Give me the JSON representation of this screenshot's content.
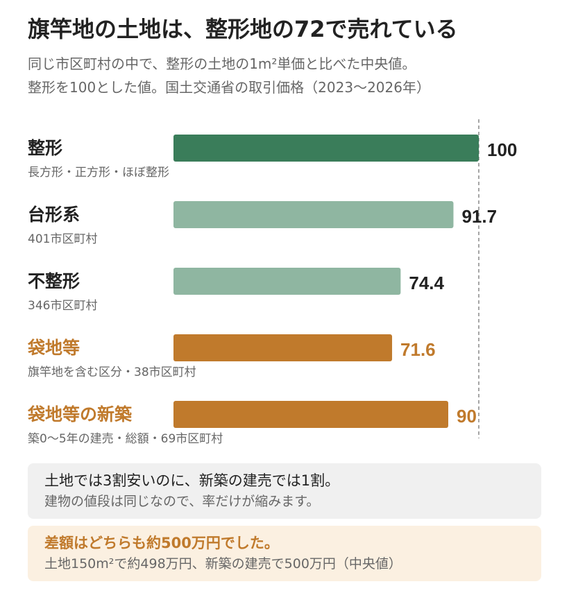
{
  "title": "旗竿地の土地は、整形地の72で売れている",
  "subtitle": [
    "同じ市区町村の中で、整形の土地の1m²単価と比べた中央値。",
    "整形を100とした値。国土交通省の取引価格（2023〜2026年）"
  ],
  "chart_data": {
    "type": "bar",
    "orientation": "horizontal",
    "title": "",
    "xlabel": "",
    "ylabel": "",
    "xlim": [
      0,
      100
    ],
    "reference_line": 100,
    "categories": [
      {
        "label": "整形",
        "sublabel": "長方形・正方形・ほぼ整形",
        "value": 100,
        "value_label": "100",
        "color": "#3a7d5a",
        "label_color": "#222222"
      },
      {
        "label": "台形系",
        "sublabel": "401市区町村",
        "value": 91.7,
        "value_label": "91.7",
        "color": "#8fb6a1",
        "label_color": "#222222"
      },
      {
        "label": "不整形",
        "sublabel": "346市区町村",
        "value": 74.4,
        "value_label": "74.4",
        "color": "#8fb6a1",
        "label_color": "#222222"
      },
      {
        "label": "袋地等",
        "sublabel": "旗竿地を含む区分・38市区町村",
        "value": 71.6,
        "value_label": "71.6",
        "color": "#c07a2c",
        "label_color": "#c07a2c"
      },
      {
        "label": "袋地等の新築",
        "sublabel": "築0〜5年の建売・総額・69市区町村",
        "value": 90,
        "value_label": "90",
        "color": "#c07a2c",
        "label_color": "#c07a2c"
      }
    ]
  },
  "notes": {
    "note1": {
      "line1": "土地では3割安いのに、新築の建売では1割。",
      "line2": "建物の値段は同じなので、率だけが縮みます。"
    },
    "note2": {
      "line1": "差額はどちらも約500万円でした。",
      "line2": "土地150m²で約498万円、新築の建売で500万円（中央値）"
    }
  }
}
